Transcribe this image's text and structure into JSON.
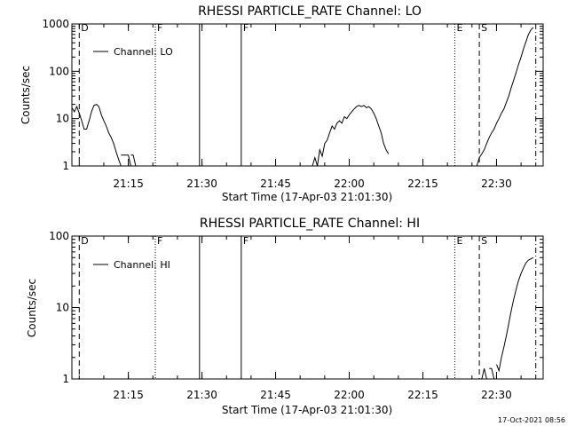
{
  "stamp": "17-Oct-2021 08:56",
  "chart_data": [
    {
      "type": "line",
      "title": "RHESSI PARTICLE_RATE Channel: LO",
      "xlabel": "Start Time (17-Apr-03 21:01:30)",
      "ylabel": "Counts/sec",
      "y_scale": "log",
      "xlim": [
        "21:03:30",
        "22:39:30"
      ],
      "ylim": [
        1,
        1000
      ],
      "x_ticks": [
        "21:15",
        "21:30",
        "21:45",
        "22:00",
        "22:15",
        "22:30"
      ],
      "y_ticks": [
        "1",
        "10",
        "100",
        "1000"
      ],
      "legend": {
        "position": "top-left",
        "entries": [
          "Channel: LO"
        ]
      },
      "grid": false,
      "markers": [
        {
          "time": "21:05:00",
          "label": "D",
          "style": "dashed"
        },
        {
          "time": "21:20:30",
          "label": "F",
          "style": "dotted"
        },
        {
          "time": "21:29:30",
          "label": "",
          "style": "solid"
        },
        {
          "time": "21:38:00",
          "label": "F",
          "style": "solid"
        },
        {
          "time": "22:21:30",
          "label": "E",
          "style": "dotted"
        },
        {
          "time": "22:26:30",
          "label": "S",
          "style": "dashed"
        },
        {
          "time": "22:38:00",
          "label": "",
          "style": "dashdot"
        }
      ],
      "series": [
        {
          "name": "Channel: LO",
          "segments": [
            [
              [
                "21:03:30",
                17
              ],
              [
                "21:04:00",
                14
              ],
              [
                "21:04:30",
                18
              ],
              [
                "21:05:00",
                13
              ],
              [
                "21:05:30",
                9
              ],
              [
                "21:06:00",
                6
              ],
              [
                "21:06:30",
                6
              ],
              [
                "21:07:00",
                9
              ],
              [
                "21:07:30",
                14
              ],
              [
                "21:08:00",
                19
              ],
              [
                "21:08:30",
                20
              ],
              [
                "21:09:00",
                18
              ],
              [
                "21:09:30",
                12
              ],
              [
                "21:10:00",
                9
              ],
              [
                "21:10:30",
                7
              ],
              [
                "21:11:00",
                5
              ],
              [
                "21:11:30",
                4
              ],
              [
                "21:12:00",
                3
              ],
              [
                "21:12:30",
                2
              ],
              [
                "21:13:00",
                1.4
              ],
              [
                "21:13:30",
                1
              ]
            ],
            [
              [
                "21:13:30",
                1.7
              ],
              [
                "21:14:00",
                1.7
              ],
              [
                "21:14:30",
                1.7
              ],
              [
                "21:15:00",
                1.7
              ],
              [
                "21:15:30",
                1
              ]
            ],
            [
              [
                "21:15:30",
                1.7
              ],
              [
                "21:16:00",
                1.7
              ],
              [
                "21:16:30",
                1
              ]
            ],
            [
              [
                "21:52:30",
                1
              ],
              [
                "21:53:00",
                1.5
              ],
              [
                "21:53:30",
                1
              ],
              [
                "21:54:00",
                2.2
              ],
              [
                "21:54:30",
                1.6
              ],
              [
                "21:55:00",
                3
              ],
              [
                "21:55:30",
                3.5
              ],
              [
                "21:56:00",
                5
              ],
              [
                "21:56:30",
                7
              ],
              [
                "21:57:00",
                6
              ],
              [
                "21:57:30",
                8
              ],
              [
                "21:58:00",
                9
              ],
              [
                "21:58:30",
                8
              ],
              [
                "21:59:00",
                11
              ],
              [
                "21:59:30",
                10
              ],
              [
                "22:00:00",
                12
              ],
              [
                "22:00:30",
                14
              ],
              [
                "22:01:00",
                16
              ],
              [
                "22:01:30",
                18
              ],
              [
                "22:02:00",
                19
              ],
              [
                "22:02:30",
                18
              ],
              [
                "22:03:00",
                19
              ],
              [
                "22:03:30",
                17
              ],
              [
                "22:04:00",
                18
              ],
              [
                "22:04:30",
                16
              ],
              [
                "22:05:00",
                13
              ],
              [
                "22:05:30",
                10
              ],
              [
                "22:06:00",
                7
              ],
              [
                "22:06:30",
                5
              ],
              [
                "22:07:00",
                3
              ],
              [
                "22:07:30",
                2.2
              ],
              [
                "22:08:00",
                1.8
              ]
            ],
            [
              [
                "22:26:00",
                1
              ],
              [
                "22:26:30",
                1.5
              ],
              [
                "22:27:00",
                1.8
              ],
              [
                "22:27:30",
                2.2
              ],
              [
                "22:28:00",
                3
              ],
              [
                "22:28:30",
                4
              ],
              [
                "22:29:00",
                5
              ],
              [
                "22:29:30",
                6
              ],
              [
                "22:30:00",
                8
              ],
              [
                "22:30:30",
                10
              ],
              [
                "22:31:00",
                13
              ],
              [
                "22:31:30",
                16
              ],
              [
                "22:32:00",
                22
              ],
              [
                "22:32:30",
                30
              ],
              [
                "22:33:00",
                45
              ],
              [
                "22:33:30",
                65
              ],
              [
                "22:34:00",
                95
              ],
              [
                "22:34:30",
                140
              ],
              [
                "22:35:00",
                200
              ],
              [
                "22:35:30",
                300
              ],
              [
                "22:36:00",
                420
              ],
              [
                "22:36:30",
                600
              ],
              [
                "22:37:00",
                750
              ],
              [
                "22:37:30",
                850
              ]
            ]
          ]
        }
      ]
    },
    {
      "type": "line",
      "title": "RHESSI PARTICLE_RATE Channel: HI",
      "xlabel": "Start Time (17-Apr-03 21:01:30)",
      "ylabel": "Counts/sec",
      "y_scale": "log",
      "xlim": [
        "21:03:30",
        "22:39:30"
      ],
      "ylim": [
        1,
        100
      ],
      "x_ticks": [
        "21:15",
        "21:30",
        "21:45",
        "22:00",
        "22:15",
        "22:30"
      ],
      "y_ticks": [
        "1",
        "10",
        "100"
      ],
      "legend": {
        "position": "top-left",
        "entries": [
          "Channel: HI"
        ]
      },
      "grid": false,
      "markers": [
        {
          "time": "21:05:00",
          "label": "D",
          "style": "dashed"
        },
        {
          "time": "21:20:30",
          "label": "F",
          "style": "dotted"
        },
        {
          "time": "21:29:30",
          "label": "",
          "style": "solid"
        },
        {
          "time": "21:38:00",
          "label": "F",
          "style": "solid"
        },
        {
          "time": "22:21:30",
          "label": "E",
          "style": "dotted"
        },
        {
          "time": "22:26:30",
          "label": "S",
          "style": "dashed"
        },
        {
          "time": "22:38:00",
          "label": "",
          "style": "dashdot"
        }
      ],
      "series": [
        {
          "name": "Channel: HI",
          "segments": [
            [
              [
                "22:27:00",
                1
              ],
              [
                "22:27:30",
                1.4
              ],
              [
                "22:28:00",
                1
              ]
            ],
            [
              [
                "22:28:30",
                1.4
              ],
              [
                "22:29:00",
                1.4
              ],
              [
                "22:29:30",
                1
              ]
            ],
            [
              [
                "22:30:00",
                1.6
              ],
              [
                "22:30:30",
                1.3
              ],
              [
                "22:31:00",
                2
              ],
              [
                "22:31:30",
                2.8
              ],
              [
                "22:32:00",
                4
              ],
              [
                "22:32:30",
                6
              ],
              [
                "22:33:00",
                9
              ],
              [
                "22:33:30",
                13
              ],
              [
                "22:34:00",
                18
              ],
              [
                "22:34:30",
                24
              ],
              [
                "22:35:00",
                30
              ],
              [
                "22:35:30",
                36
              ],
              [
                "22:36:00",
                42
              ],
              [
                "22:36:30",
                46
              ],
              [
                "22:37:00",
                48
              ],
              [
                "22:37:30",
                50
              ]
            ]
          ]
        }
      ]
    }
  ]
}
